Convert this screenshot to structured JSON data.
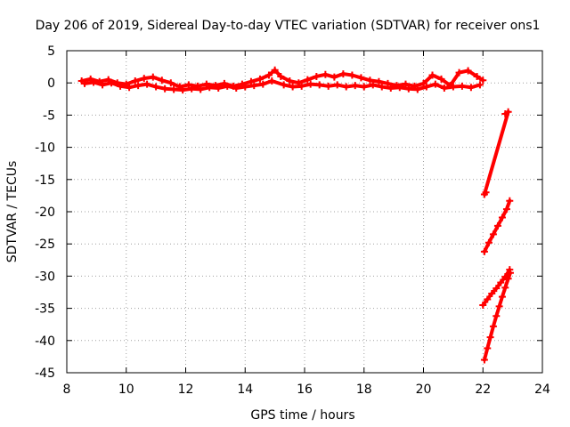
{
  "chart_data": {
    "type": "scatter",
    "title": "Day 206 of 2019, Sidereal Day-to-day VTEC variation (SDTVAR) for receiver ons1",
    "xlabel": "GPS time / hours",
    "ylabel": "SDTVAR / TECUs",
    "xlim": [
      8,
      24
    ],
    "ylim": [
      -45,
      5
    ],
    "xticks": [
      "8",
      "10",
      "12",
      "14",
      "16",
      "18",
      "20",
      "22",
      "24"
    ],
    "yticks": [
      "5",
      "0",
      "-5",
      "-10",
      "-15",
      "-20",
      "-25",
      "-30",
      "-35",
      "-40",
      "-45"
    ],
    "grid": true,
    "legend": "none",
    "marker": "plus",
    "color": "#ff0000",
    "series": [
      {
        "values": [
          {
            "x": 8.5,
            "y": 0.3
          },
          {
            "x": 8.8,
            "y": 0.6
          },
          {
            "x": 9.1,
            "y": 0.2
          },
          {
            "x": 9.4,
            "y": 0.5
          },
          {
            "x": 9.7,
            "y": 0.0
          },
          {
            "x": 10.0,
            "y": -0.2
          },
          {
            "x": 10.3,
            "y": 0.3
          },
          {
            "x": 10.6,
            "y": 0.7
          },
          {
            "x": 10.9,
            "y": 0.9
          },
          {
            "x": 11.2,
            "y": 0.4
          },
          {
            "x": 11.5,
            "y": 0.0
          },
          {
            "x": 11.8,
            "y": -0.6
          },
          {
            "x": 12.1,
            "y": -0.3
          },
          {
            "x": 12.4,
            "y": -0.5
          },
          {
            "x": 12.7,
            "y": -0.2
          },
          {
            "x": 13.0,
            "y": -0.4
          },
          {
            "x": 13.3,
            "y": -0.1
          },
          {
            "x": 13.6,
            "y": -0.5
          },
          {
            "x": 13.9,
            "y": -0.2
          },
          {
            "x": 14.2,
            "y": 0.2
          },
          {
            "x": 14.5,
            "y": 0.6
          },
          {
            "x": 14.8,
            "y": 1.2
          },
          {
            "x": 15.0,
            "y": 2.0
          },
          {
            "x": 15.2,
            "y": 1.0
          },
          {
            "x": 15.5,
            "y": 0.3
          },
          {
            "x": 15.8,
            "y": 0.0
          },
          {
            "x": 16.1,
            "y": 0.5
          },
          {
            "x": 16.4,
            "y": 1.0
          },
          {
            "x": 16.7,
            "y": 1.3
          },
          {
            "x": 17.0,
            "y": 0.9
          },
          {
            "x": 17.3,
            "y": 1.4
          },
          {
            "x": 17.6,
            "y": 1.2
          },
          {
            "x": 17.9,
            "y": 0.8
          },
          {
            "x": 18.2,
            "y": 0.4
          },
          {
            "x": 18.5,
            "y": 0.2
          },
          {
            "x": 18.8,
            "y": -0.1
          },
          {
            "x": 19.1,
            "y": -0.4
          },
          {
            "x": 19.4,
            "y": -0.2
          },
          {
            "x": 19.7,
            "y": -0.5
          },
          {
            "x": 20.0,
            "y": -0.1
          },
          {
            "x": 20.3,
            "y": 1.2
          },
          {
            "x": 20.6,
            "y": 0.6
          },
          {
            "x": 20.9,
            "y": -0.4
          },
          {
            "x": 21.2,
            "y": 1.6
          },
          {
            "x": 21.5,
            "y": 1.9
          },
          {
            "x": 21.8,
            "y": 1.0
          },
          {
            "x": 22.0,
            "y": 0.4
          }
        ]
      },
      {
        "values": [
          {
            "x": 8.6,
            "y": -0.1
          },
          {
            "x": 8.9,
            "y": 0.1
          },
          {
            "x": 9.2,
            "y": -0.3
          },
          {
            "x": 9.5,
            "y": 0.0
          },
          {
            "x": 9.8,
            "y": -0.5
          },
          {
            "x": 10.1,
            "y": -0.7
          },
          {
            "x": 10.4,
            "y": -0.4
          },
          {
            "x": 10.7,
            "y": -0.2
          },
          {
            "x": 11.0,
            "y": -0.6
          },
          {
            "x": 11.3,
            "y": -0.9
          },
          {
            "x": 11.6,
            "y": -1.0
          },
          {
            "x": 11.9,
            "y": -1.1
          },
          {
            "x": 12.2,
            "y": -0.9
          },
          {
            "x": 12.5,
            "y": -1.0
          },
          {
            "x": 12.8,
            "y": -0.7
          },
          {
            "x": 13.1,
            "y": -0.8
          },
          {
            "x": 13.4,
            "y": -0.5
          },
          {
            "x": 13.7,
            "y": -0.8
          },
          {
            "x": 14.0,
            "y": -0.6
          },
          {
            "x": 14.3,
            "y": -0.4
          },
          {
            "x": 14.6,
            "y": -0.2
          },
          {
            "x": 14.9,
            "y": 0.3
          },
          {
            "x": 15.3,
            "y": -0.3
          },
          {
            "x": 15.6,
            "y": -0.6
          },
          {
            "x": 15.9,
            "y": -0.5
          },
          {
            "x": 16.2,
            "y": -0.2
          },
          {
            "x": 16.5,
            "y": -0.3
          },
          {
            "x": 16.8,
            "y": -0.5
          },
          {
            "x": 17.1,
            "y": -0.3
          },
          {
            "x": 17.4,
            "y": -0.6
          },
          {
            "x": 17.7,
            "y": -0.4
          },
          {
            "x": 18.0,
            "y": -0.6
          },
          {
            "x": 18.3,
            "y": -0.3
          },
          {
            "x": 18.6,
            "y": -0.6
          },
          {
            "x": 18.9,
            "y": -0.8
          },
          {
            "x": 19.2,
            "y": -0.7
          },
          {
            "x": 19.5,
            "y": -0.9
          },
          {
            "x": 19.8,
            "y": -1.0
          },
          {
            "x": 20.1,
            "y": -0.6
          },
          {
            "x": 20.4,
            "y": -0.2
          },
          {
            "x": 20.7,
            "y": -0.8
          },
          {
            "x": 21.0,
            "y": -0.6
          },
          {
            "x": 21.3,
            "y": -0.5
          },
          {
            "x": 21.6,
            "y": -0.7
          },
          {
            "x": 21.9,
            "y": -0.3
          }
        ]
      },
      {
        "values": [
          {
            "x": 22.75,
            "y": -4.8
          },
          {
            "x": 22.85,
            "y": -4.5
          },
          {
            "x": 22.05,
            "y": -17.3
          },
          {
            "x": 22.1,
            "y": -17.0
          }
        ]
      },
      {
        "values": [
          {
            "x": 22.05,
            "y": -26.2
          },
          {
            "x": 22.2,
            "y": -24.8
          },
          {
            "x": 22.35,
            "y": -23.5
          },
          {
            "x": 22.5,
            "y": -22.2
          },
          {
            "x": 22.65,
            "y": -20.9
          },
          {
            "x": 22.8,
            "y": -19.6
          },
          {
            "x": 22.9,
            "y": -18.3
          }
        ]
      },
      {
        "values": [
          {
            "x": 22.0,
            "y": -34.5
          },
          {
            "x": 22.15,
            "y": -33.6
          },
          {
            "x": 22.3,
            "y": -32.7
          },
          {
            "x": 22.45,
            "y": -31.9
          },
          {
            "x": 22.6,
            "y": -31.0
          },
          {
            "x": 22.75,
            "y": -30.1
          },
          {
            "x": 22.9,
            "y": -29.0
          }
        ]
      },
      {
        "values": [
          {
            "x": 22.05,
            "y": -43.0
          },
          {
            "x": 22.15,
            "y": -41.2
          },
          {
            "x": 22.25,
            "y": -39.5
          },
          {
            "x": 22.35,
            "y": -37.8
          },
          {
            "x": 22.45,
            "y": -36.2
          },
          {
            "x": 22.55,
            "y": -34.7
          },
          {
            "x": 22.65,
            "y": -33.2
          },
          {
            "x": 22.75,
            "y": -31.8
          },
          {
            "x": 22.85,
            "y": -30.4
          },
          {
            "x": 22.92,
            "y": -29.5
          }
        ]
      }
    ]
  }
}
